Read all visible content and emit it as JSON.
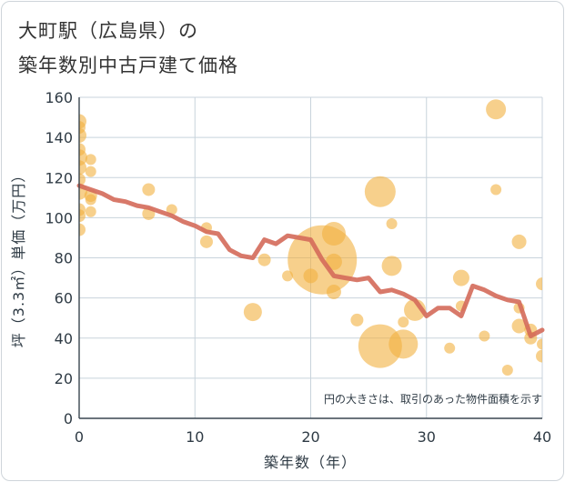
{
  "title_line1": "大町駅（広島県）の",
  "title_line2": "築年数別中古戸建て価格",
  "note": "円の大きさは、取引のあった物件面積を示す",
  "chart_data": {
    "type": "scatter+line",
    "xlabel": "築年数（年）",
    "ylabel": "坪（3.3㎡）単価（万円）",
    "xlim": [
      0,
      40
    ],
    "ylim": [
      0,
      160
    ],
    "xticks": [
      0,
      10,
      20,
      30,
      40
    ],
    "yticks": [
      0,
      20,
      40,
      60,
      80,
      100,
      120,
      140,
      160
    ],
    "grid": true,
    "colors": {
      "bubble": "#f2b040",
      "line": "#d46a5a",
      "grid": "#c8d3dc"
    },
    "bubbles": [
      {
        "x": 0,
        "y": 148,
        "s": 8
      },
      {
        "x": 0,
        "y": 145,
        "s": 7
      },
      {
        "x": 0,
        "y": 141,
        "s": 8
      },
      {
        "x": 0,
        "y": 134,
        "s": 7
      },
      {
        "x": 0,
        "y": 130,
        "s": 9
      },
      {
        "x": 0,
        "y": 125,
        "s": 8
      },
      {
        "x": 0,
        "y": 119,
        "s": 7
      },
      {
        "x": 0,
        "y": 113,
        "s": 9
      },
      {
        "x": 0,
        "y": 104,
        "s": 7
      },
      {
        "x": 0,
        "y": 101,
        "s": 7
      },
      {
        "x": 0,
        "y": 94,
        "s": 7
      },
      {
        "x": 1,
        "y": 129,
        "s": 6
      },
      {
        "x": 1,
        "y": 123,
        "s": 6
      },
      {
        "x": 1,
        "y": 111,
        "s": 7
      },
      {
        "x": 1,
        "y": 109,
        "s": 6
      },
      {
        "x": 1,
        "y": 103,
        "s": 6
      },
      {
        "x": 6,
        "y": 114,
        "s": 7
      },
      {
        "x": 6,
        "y": 102,
        "s": 7
      },
      {
        "x": 8,
        "y": 104,
        "s": 6
      },
      {
        "x": 11,
        "y": 95,
        "s": 6
      },
      {
        "x": 11,
        "y": 88,
        "s": 7
      },
      {
        "x": 15,
        "y": 53,
        "s": 10
      },
      {
        "x": 16,
        "y": 79,
        "s": 7
      },
      {
        "x": 18,
        "y": 71,
        "s": 6
      },
      {
        "x": 20,
        "y": 71,
        "s": 8
      },
      {
        "x": 21,
        "y": 79,
        "s": 38
      },
      {
        "x": 22,
        "y": 92,
        "s": 13
      },
      {
        "x": 22,
        "y": 78,
        "s": 9
      },
      {
        "x": 22,
        "y": 63,
        "s": 8
      },
      {
        "x": 24,
        "y": 49,
        "s": 7
      },
      {
        "x": 26,
        "y": 113,
        "s": 17
      },
      {
        "x": 26,
        "y": 36,
        "s": 24
      },
      {
        "x": 27,
        "y": 97,
        "s": 6
      },
      {
        "x": 27,
        "y": 76,
        "s": 11
      },
      {
        "x": 28,
        "y": 48,
        "s": 6
      },
      {
        "x": 28,
        "y": 37,
        "s": 16
      },
      {
        "x": 29,
        "y": 54,
        "s": 12
      },
      {
        "x": 32,
        "y": 35,
        "s": 6
      },
      {
        "x": 33,
        "y": 70,
        "s": 9
      },
      {
        "x": 33,
        "y": 56,
        "s": 6
      },
      {
        "x": 35,
        "y": 41,
        "s": 6
      },
      {
        "x": 36,
        "y": 154,
        "s": 11
      },
      {
        "x": 36,
        "y": 114,
        "s": 6
      },
      {
        "x": 37,
        "y": 24,
        "s": 6
      },
      {
        "x": 38,
        "y": 88,
        "s": 8
      },
      {
        "x": 38,
        "y": 55,
        "s": 6
      },
      {
        "x": 38,
        "y": 46,
        "s": 8
      },
      {
        "x": 39,
        "y": 44,
        "s": 7
      },
      {
        "x": 39,
        "y": 40,
        "s": 7
      },
      {
        "x": 40,
        "y": 67,
        "s": 7
      },
      {
        "x": 40,
        "y": 37,
        "s": 6
      },
      {
        "x": 40,
        "y": 31,
        "s": 7
      }
    ],
    "line": {
      "x": [
        0,
        1,
        2,
        3,
        4,
        5,
        6,
        7,
        8,
        9,
        10,
        11,
        12,
        13,
        14,
        15,
        16,
        17,
        18,
        19,
        20,
        21,
        22,
        23,
        24,
        25,
        26,
        27,
        28,
        29,
        30,
        31,
        32,
        33,
        34,
        35,
        36,
        37,
        38,
        39,
        40
      ],
      "y": [
        116,
        114,
        112,
        109,
        108,
        106,
        105,
        103,
        101,
        98,
        96,
        93,
        92,
        84,
        81,
        80,
        89,
        87,
        91,
        90,
        89,
        79,
        71,
        70,
        69,
        70,
        63,
        64,
        62,
        59,
        51,
        55,
        55,
        51,
        66,
        64,
        61,
        59,
        58,
        41,
        44
      ]
    }
  }
}
